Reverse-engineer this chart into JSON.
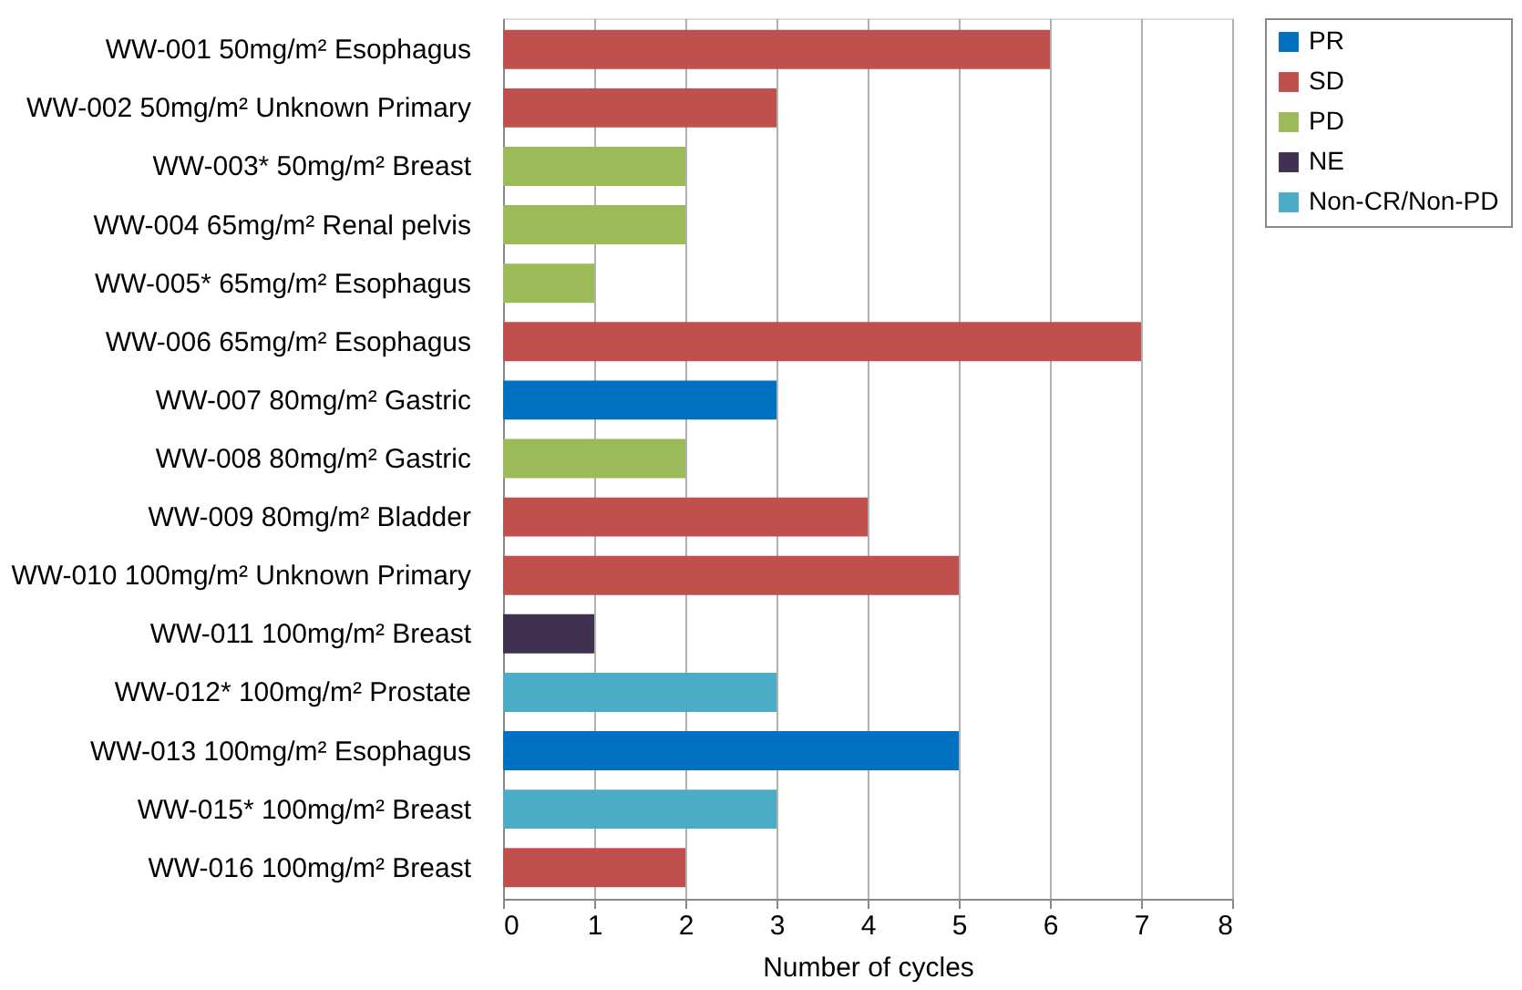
{
  "chart_data": {
    "type": "bar",
    "orientation": "horizontal",
    "xlabel": "Number of cycles",
    "categories": [
      "WW-001 50mg/m² Esophagus",
      "WW-002 50mg/m² Unknown Primary",
      "WW-003* 50mg/m² Breast",
      "WW-004 65mg/m² Renal pelvis",
      "WW-005* 65mg/m² Esophagus",
      "WW-006 65mg/m² Esophagus",
      "WW-007 80mg/m² Gastric",
      "WW-008 80mg/m² Gastric",
      "WW-009 80mg/m² Bladder",
      "WW-010 100mg/m² Unknown Primary",
      "WW-011 100mg/m² Breast",
      "WW-012* 100mg/m² Prostate",
      "WW-013 100mg/m² Esophagus",
      "WW-015* 100mg/m² Breast",
      "WW-016 100mg/m² Breast"
    ],
    "series": [
      {
        "name": "PR",
        "color": "#0070c0",
        "values": [
          null,
          null,
          null,
          null,
          null,
          null,
          3,
          null,
          null,
          null,
          null,
          null,
          5,
          null,
          null
        ]
      },
      {
        "name": "SD",
        "color": "#c0504d",
        "values": [
          6,
          3,
          null,
          null,
          null,
          7,
          null,
          null,
          4,
          5,
          null,
          null,
          null,
          null,
          2
        ]
      },
      {
        "name": "PD",
        "color": "#9bbb59",
        "values": [
          null,
          null,
          2,
          2,
          1,
          null,
          null,
          2,
          null,
          null,
          null,
          null,
          null,
          null,
          null
        ]
      },
      {
        "name": "NE",
        "color": "#403151",
        "values": [
          null,
          null,
          null,
          null,
          null,
          null,
          null,
          null,
          null,
          null,
          1,
          null,
          null,
          null,
          null
        ]
      },
      {
        "name": "Non-CR/Non-PD",
        "color": "#4bacc6",
        "values": [
          null,
          null,
          null,
          null,
          null,
          null,
          null,
          null,
          null,
          null,
          null,
          3,
          null,
          3,
          null
        ]
      }
    ],
    "xlim": [
      0,
      8
    ],
    "xticks": [
      0,
      1,
      2,
      3,
      4,
      5,
      6,
      7,
      8
    ],
    "grid": "x",
    "legend": "right"
  }
}
